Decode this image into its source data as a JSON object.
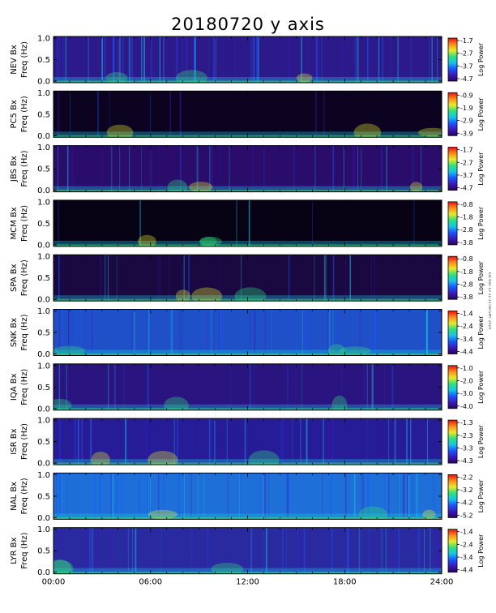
{
  "title": "20180720  y axis",
  "watermark": "Tue Nov 12 11:33:58 GMT 2019",
  "xaxis": {
    "ticks": [
      "00:00",
      "06:00",
      "12:00",
      "18:00",
      "24:00"
    ]
  },
  "colorbar_label": "Log Power",
  "palette": [
    "#2a0060",
    "#3a1ab8",
    "#1a55ff",
    "#17c4e8",
    "#2ee07c",
    "#e7ea2a",
    "#ff8a1a",
    "#e61010"
  ],
  "chart_data": [
    {
      "type": "heatmap",
      "station": "NEV Bx",
      "ylabel": "Freq (Hz)",
      "x_range_hours": [
        0,
        24
      ],
      "ylim": [
        0,
        1.0
      ],
      "yticks": [
        "0.0",
        "0.5",
        "1.0"
      ],
      "colorbar_ticks": [
        "-1.7",
        "-2.7",
        "-3.7",
        "-4.7"
      ]
    },
    {
      "type": "heatmap",
      "station": "PC5 Bx",
      "ylabel": "Freq (Hz)",
      "x_range_hours": [
        0,
        24
      ],
      "ylim": [
        0,
        1.0
      ],
      "yticks": [
        "0.0",
        "0.5",
        "1.0"
      ],
      "colorbar_ticks": [
        "-0.9",
        "-1.9",
        "-2.9",
        "-3.9"
      ]
    },
    {
      "type": "heatmap",
      "station": "JBS Bx",
      "ylabel": "Freq (Hz)",
      "x_range_hours": [
        0,
        24
      ],
      "ylim": [
        0,
        1.0
      ],
      "yticks": [
        "0.0",
        "0.5",
        "1.0"
      ],
      "colorbar_ticks": [
        "-1.7",
        "-2.7",
        "-3.7",
        "-4.7"
      ]
    },
    {
      "type": "heatmap",
      "station": "MCM Bx",
      "ylabel": "Freq (Hz)",
      "x_range_hours": [
        0,
        24
      ],
      "ylim": [
        0,
        1.0
      ],
      "yticks": [
        "0.0",
        "0.5",
        "1.0"
      ],
      "colorbar_ticks": [
        "-0.8",
        "-1.8",
        "-2.8",
        "-3.8"
      ]
    },
    {
      "type": "heatmap",
      "station": "SPA Bx",
      "ylabel": "Freq (Hz)",
      "x_range_hours": [
        0,
        24
      ],
      "ylim": [
        0,
        1.0
      ],
      "yticks": [
        "0.0",
        "0.5",
        "1.0"
      ],
      "colorbar_ticks": [
        "-0.8",
        "-1.8",
        "-2.8",
        "-3.8"
      ]
    },
    {
      "type": "heatmap",
      "station": "SNK Bx",
      "ylabel": "Freq (Hz)",
      "x_range_hours": [
        0,
        24
      ],
      "ylim": [
        0,
        1.0
      ],
      "yticks": [
        "0.0",
        "0.5",
        "1.0"
      ],
      "colorbar_ticks": [
        "-1.4",
        "-2.4",
        "-3.4",
        "-4.4"
      ]
    },
    {
      "type": "heatmap",
      "station": "IQA Bx",
      "ylabel": "Freq (Hz)",
      "x_range_hours": [
        0,
        24
      ],
      "ylim": [
        0,
        1.0
      ],
      "yticks": [
        "0.0",
        "0.5",
        "1.0"
      ],
      "colorbar_ticks": [
        "-1.0",
        "-2.0",
        "-3.0",
        "-4.0"
      ]
    },
    {
      "type": "heatmap",
      "station": "ISR Bx",
      "ylabel": "Freq (Hz)",
      "x_range_hours": [
        0,
        24
      ],
      "ylim": [
        0,
        1.0
      ],
      "yticks": [
        "0.0",
        "0.5",
        "1.0"
      ],
      "colorbar_ticks": [
        "-1.3",
        "-2.3",
        "-3.3",
        "-4.3"
      ]
    },
    {
      "type": "heatmap",
      "station": "NAL Bx",
      "ylabel": "Freq (Hz)",
      "x_range_hours": [
        0,
        24
      ],
      "ylim": [
        0,
        1.0
      ],
      "yticks": [
        "0.0",
        "0.5",
        "1.0"
      ],
      "colorbar_ticks": [
        "-2.2",
        "-3.2",
        "-4.2",
        "-5.2"
      ]
    },
    {
      "type": "heatmap",
      "station": "LYR Bx",
      "ylabel": "Freq (Hz)",
      "x_range_hours": [
        0,
        24
      ],
      "ylim": [
        0,
        1.0
      ],
      "yticks": [
        "0.0",
        "0.5",
        "1.0"
      ],
      "colorbar_ticks": [
        "-1.4",
        "-2.4",
        "-3.4",
        "-4.4"
      ]
    }
  ]
}
